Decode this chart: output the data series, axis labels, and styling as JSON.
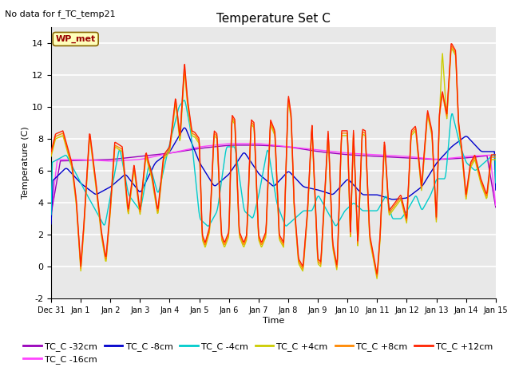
{
  "title": "Temperature Set C",
  "subtitle": "No data for f_TC_temp21",
  "xlabel": "Time",
  "ylabel": "Temperature (C)",
  "ylim": [
    -2,
    15
  ],
  "xlim": [
    0,
    15
  ],
  "plot_bg": "#e8e8e8",
  "fig_bg": "#ffffff",
  "grid_color": "#ffffff",
  "series_labels": [
    "TC_C -32cm",
    "TC_C -16cm",
    "TC_C -8cm",
    "TC_C -4cm",
    "TC_C +4cm",
    "TC_C +8cm",
    "TC_C +12cm"
  ],
  "series_colors": [
    "#9900bb",
    "#ff44ff",
    "#0000cc",
    "#00cccc",
    "#cccc00",
    "#ff8800",
    "#ff2200"
  ],
  "xtick_labels": [
    "Dec 31",
    "Jan 1",
    "Jan 2",
    "Jan 3",
    "Jan 4",
    "Jan 5",
    "Jan 6",
    "Jan 7",
    "Jan 8",
    "Jan 9",
    "Jan 10",
    "Jan 11",
    "Jan 12",
    "Jan 13",
    "Jan 14",
    "Jan 15"
  ],
  "ytick_values": [
    -2,
    0,
    2,
    4,
    6,
    8,
    10,
    12,
    14
  ],
  "wp_met_color": "#990000",
  "wp_met_bg": "#ffffbb",
  "wp_met_border": "#886600"
}
